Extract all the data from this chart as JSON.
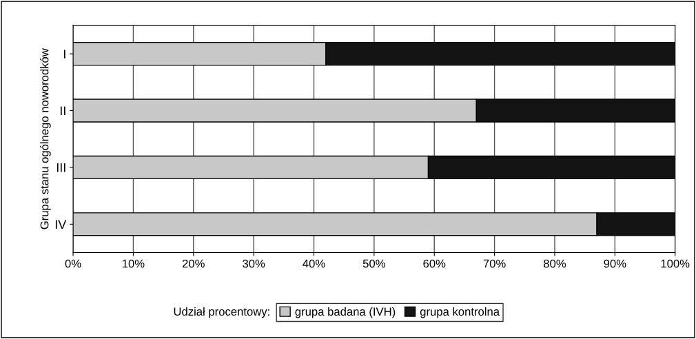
{
  "chart_data": {
    "type": "bar",
    "orientation": "horizontal",
    "stacked": true,
    "ylabel": "Grupa stanu ogólnego noworodków",
    "legend_title": "Udział procentowy:",
    "categories": [
      "I",
      "II",
      "III",
      "IV"
    ],
    "series": [
      {
        "name": "grupa badana (IVH)",
        "color": "#c8c8c8",
        "values": [
          42,
          67,
          59,
          87
        ]
      },
      {
        "name": "grupa kontrolna",
        "color": "#141414",
        "values": [
          58,
          33,
          41,
          13
        ]
      }
    ],
    "xlim": [
      0,
      100
    ],
    "xticks": [
      {
        "value": 0,
        "label": "0%"
      },
      {
        "value": 10,
        "label": "10%"
      },
      {
        "value": 20,
        "label": "20%"
      },
      {
        "value": 30,
        "label": "30%"
      },
      {
        "value": 40,
        "label": "40%"
      },
      {
        "value": 50,
        "label": "50%"
      },
      {
        "value": 60,
        "label": "60%"
      },
      {
        "value": 70,
        "label": "70%"
      },
      {
        "value": 80,
        "label": "80%"
      },
      {
        "value": 90,
        "label": "90%"
      },
      {
        "value": 100,
        "label": "100%"
      }
    ],
    "grid": "x",
    "legend": "bottom"
  }
}
